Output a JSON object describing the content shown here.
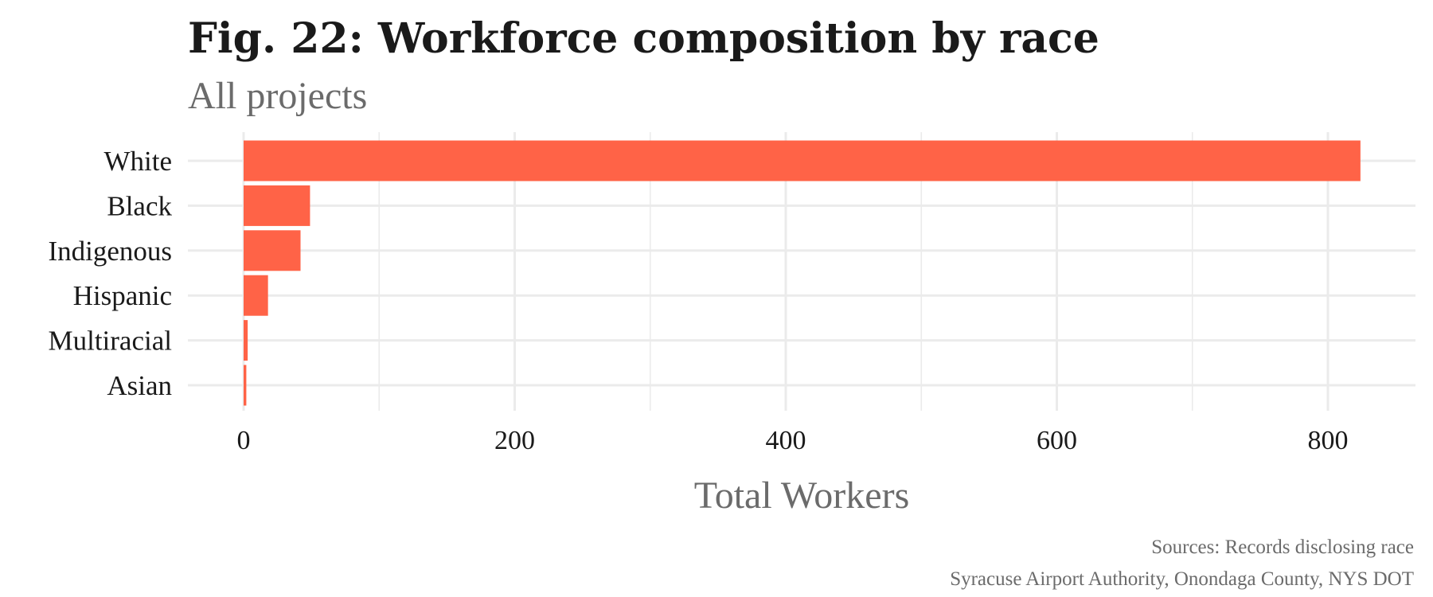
{
  "chart_data": {
    "type": "bar",
    "orientation": "horizontal",
    "title": "Fig. 22: Workforce composition by race",
    "subtitle": "All projects",
    "categories": [
      "White",
      "Black",
      "Indigenous",
      "Hispanic",
      "Multiracial",
      "Asian"
    ],
    "values": [
      824,
      49,
      42,
      18,
      3,
      2
    ],
    "xlabel": "Total Workers",
    "ylabel": "",
    "xlim": [
      -40,
      865
    ],
    "xticks": [
      0,
      200,
      400,
      600,
      800
    ],
    "xtick_labels": [
      "0",
      "200",
      "400",
      "600",
      "800"
    ],
    "bar_color": "#FF6347",
    "grid": true,
    "legend": "none",
    "caption_lines": [
      "Sources: Records disclosing race",
      "Syracuse Airport Authority, Onondaga County, NYS DOT"
    ]
  }
}
